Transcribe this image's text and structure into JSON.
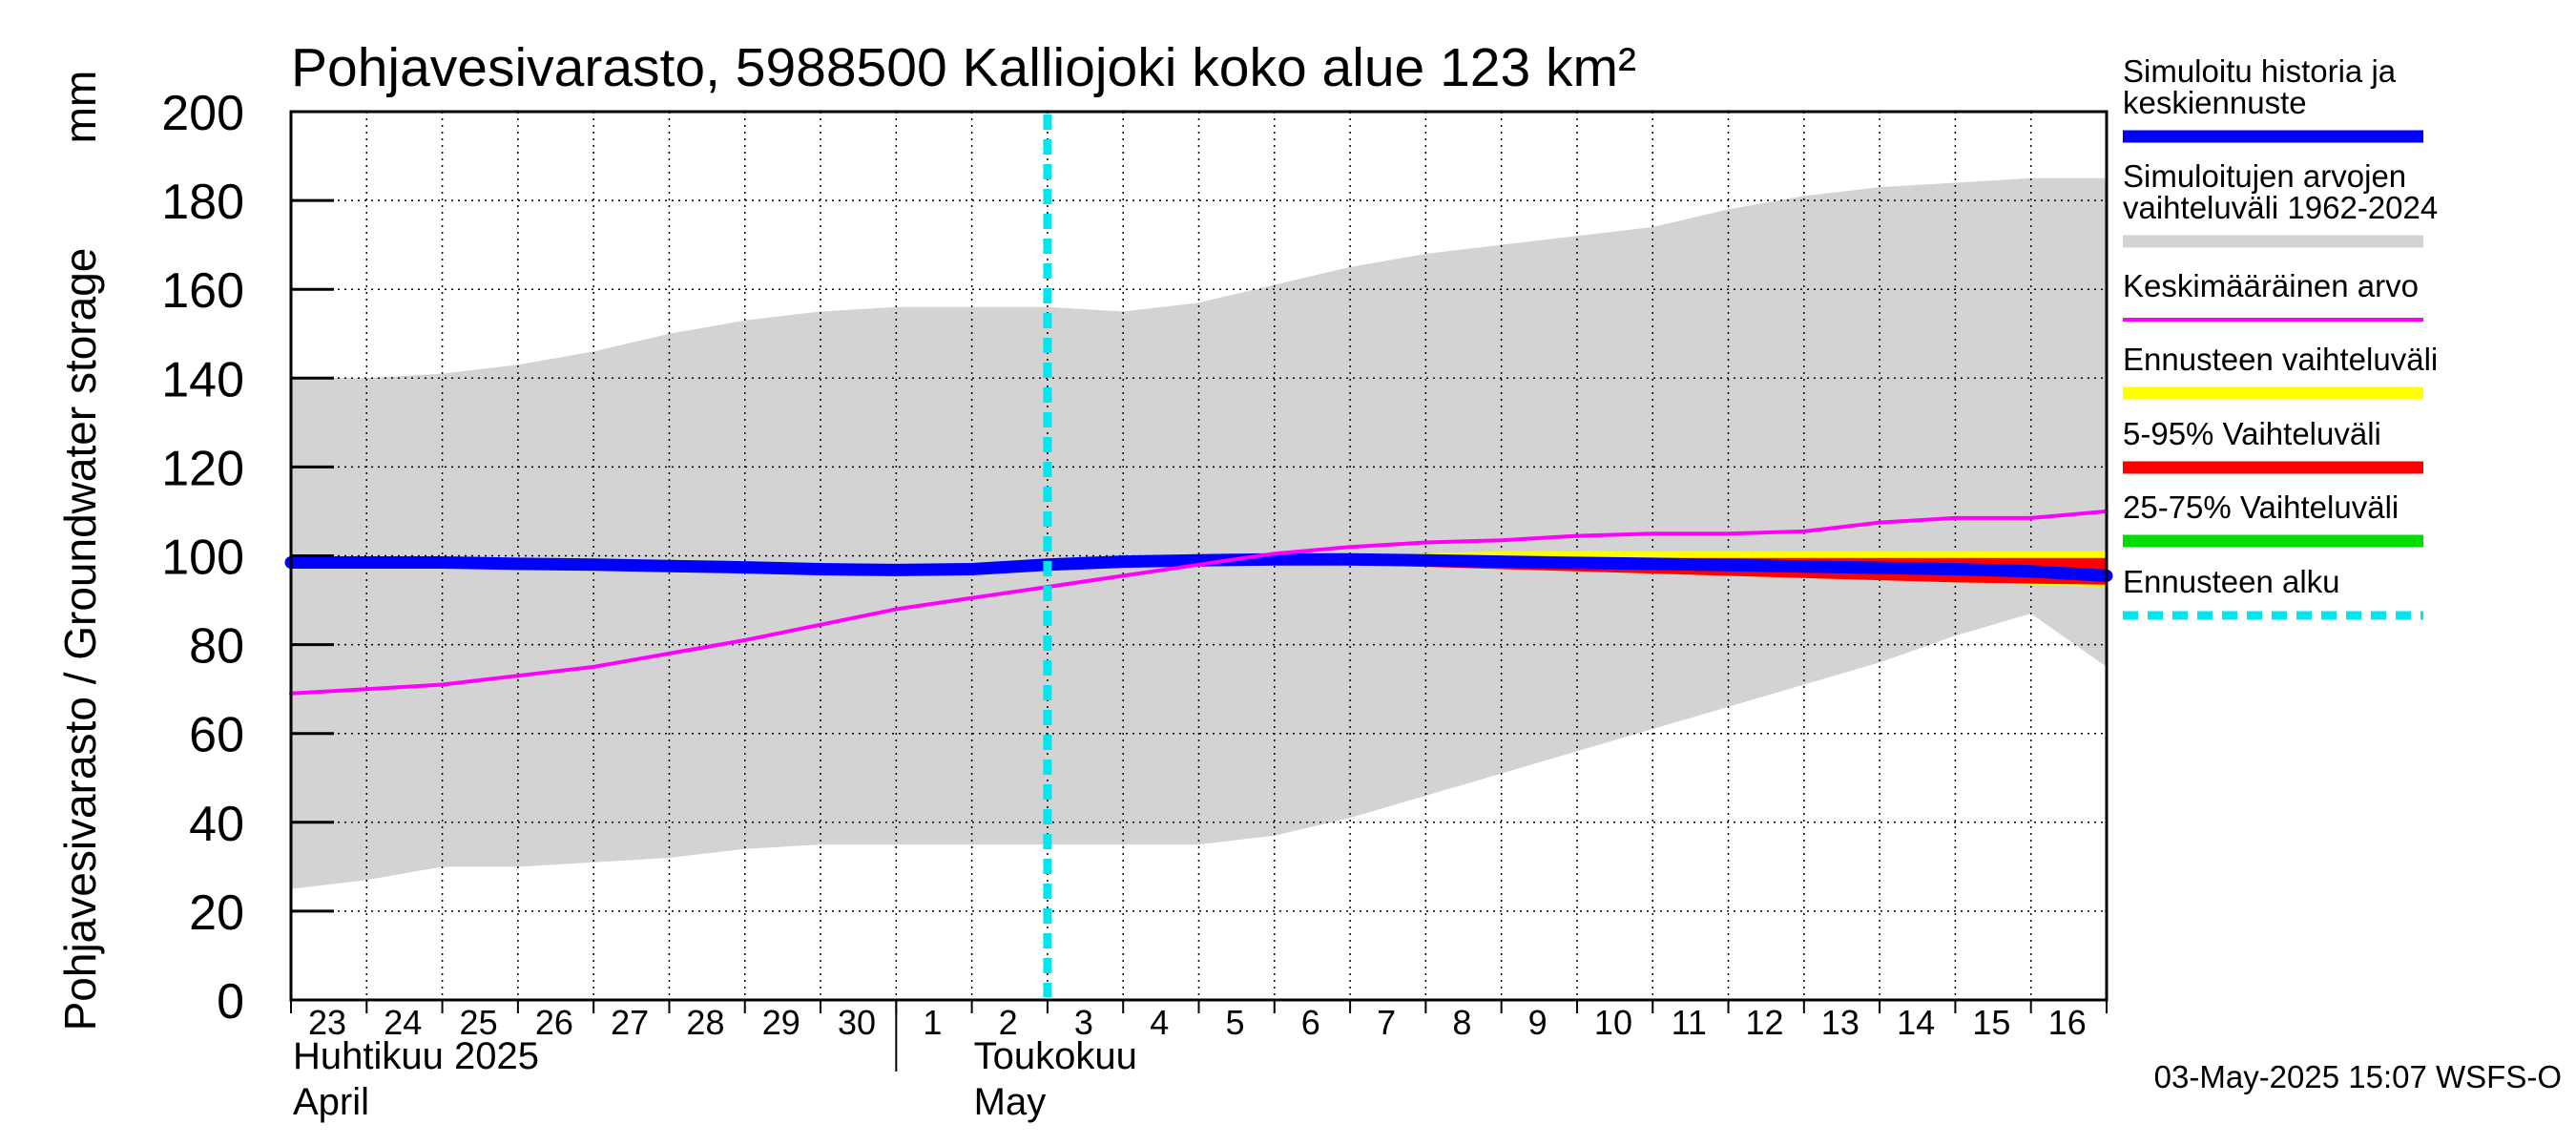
{
  "chart_data": {
    "type": "line",
    "title": "Pohjavesivarasto, 5988500 Kalliojoki koko alue 123 km²",
    "ylabel": "Pohjavesivarasto / Groundwater storage",
    "yunit": "mm",
    "ylim": [
      0,
      200
    ],
    "yticks": [
      0,
      20,
      40,
      60,
      80,
      100,
      120,
      140,
      160,
      180,
      200
    ],
    "xlim": [
      0,
      24
    ],
    "grid": true,
    "day_labels": [
      "23",
      "24",
      "25",
      "26",
      "27",
      "28",
      "29",
      "30",
      "1",
      "2",
      "3",
      "4",
      "5",
      "6",
      "7",
      "8",
      "9",
      "10",
      "11",
      "12",
      "13",
      "14",
      "15",
      "16"
    ],
    "month_labels": [
      {
        "line1": "Huhtikuu  2025",
        "line2": "April",
        "day_index": 0
      },
      {
        "line1": "Toukokuu",
        "line2": "May",
        "day_index": 9
      }
    ],
    "month_separator_day_index": 8,
    "forecast_start_x": 10,
    "sim_range": {
      "name": "Simuloitujen arvojen vaihteluväli 1962-2024",
      "color": "#d3d3d3",
      "x": [
        0,
        1,
        2,
        3,
        4,
        5,
        6,
        7,
        8,
        9,
        10,
        11,
        12,
        13,
        14,
        15,
        16,
        17,
        18,
        19,
        20,
        21,
        22,
        23,
        24
      ],
      "upper": [
        140,
        140,
        141,
        143,
        146,
        150,
        153,
        155,
        156,
        156,
        156,
        155,
        157,
        161,
        165,
        168,
        170,
        172,
        174,
        178,
        181,
        183,
        184,
        185,
        185
      ],
      "lower": [
        25,
        27,
        30,
        30,
        31,
        32,
        34,
        35,
        35,
        35,
        35,
        35,
        35,
        37,
        41,
        46,
        51,
        56,
        61,
        66,
        71,
        76,
        82,
        87,
        75
      ]
    },
    "forecast_band": {
      "name": "Ennusteen vaihteluväli",
      "color": "#ffff00",
      "x": [
        10,
        12,
        14,
        16,
        18,
        20,
        22,
        24
      ],
      "upper": [
        98,
        100,
        100,
        101,
        101,
        101,
        101,
        101
      ],
      "lower": [
        98,
        99,
        98,
        97,
        96,
        95,
        94,
        93
      ]
    },
    "band_5_95": {
      "name": "5-95% Vaihteluväli",
      "color": "#ff0000",
      "x": [
        10,
        12,
        14,
        16,
        18,
        20,
        22,
        24
      ],
      "upper": [
        98,
        99.5,
        99.5,
        99.5,
        99.5,
        99.5,
        99.5,
        99.5
      ],
      "lower": [
        98,
        99,
        98,
        97,
        96,
        95,
        94,
        93.5
      ]
    },
    "band_25_75": {
      "name": "25-75% Vaihteluväli",
      "color": "#00dd00",
      "x": [
        10,
        12,
        14,
        16,
        18,
        20,
        22,
        24
      ],
      "upper": [
        98,
        99.2,
        99,
        98.5,
        98,
        97.5,
        97,
        96.5
      ],
      "lower": [
        98,
        99,
        98.5,
        98,
        97.5,
        97,
        96,
        95
      ]
    },
    "series": [
      {
        "name": "Simuloitu historia ja keskiennuste",
        "color": "#0000ff",
        "x": [
          0,
          1,
          2,
          3,
          4,
          5,
          6,
          7,
          8,
          9,
          10,
          11,
          12,
          13,
          14,
          15,
          16,
          17,
          18,
          19,
          20,
          21,
          22,
          23,
          24
        ],
        "values": [
          98.5,
          98.5,
          98.5,
          98.2,
          98,
          97.7,
          97.4,
          97,
          96.8,
          97,
          98,
          98.7,
          99,
          99.2,
          99.2,
          99,
          98.7,
          98.4,
          98.2,
          97.9,
          97.6,
          97.3,
          97,
          96.5,
          95.5
        ]
      },
      {
        "name": "Keskimääräinen arvo",
        "color": "#ff00ff",
        "x": [
          0,
          1,
          2,
          3,
          4,
          5,
          6,
          7,
          8,
          9,
          10,
          11,
          12,
          13,
          14,
          15,
          16,
          17,
          18,
          19,
          20,
          21,
          22,
          23,
          24
        ],
        "values": [
          69,
          70,
          71,
          73,
          75,
          78,
          81,
          84.5,
          88,
          90.5,
          93,
          95.5,
          98,
          100.5,
          102,
          103,
          103.5,
          104.5,
          105,
          105,
          105.5,
          107.5,
          108.5,
          108.5,
          110
        ]
      }
    ]
  },
  "legend": {
    "items": [
      {
        "line1": "Simuloitu historia ja",
        "line2": "keskiennuste",
        "color": "#0000ff",
        "style": "solid"
      },
      {
        "line1": "Simuloitujen arvojen",
        "line2": "vaihteluväli 1962-2024",
        "color": "#d3d3d3",
        "style": "solid"
      },
      {
        "line1": "Keskimääräinen arvo",
        "line2": "",
        "color": "#ff00ff",
        "style": "thin"
      },
      {
        "line1": "Ennusteen vaihteluväli",
        "line2": "",
        "color": "#ffff00",
        "style": "solid"
      },
      {
        "line1": "5-95% Vaihteluväli",
        "line2": "",
        "color": "#ff0000",
        "style": "solid"
      },
      {
        "line1": "25-75% Vaihteluväli",
        "line2": "",
        "color": "#00dd00",
        "style": "solid"
      },
      {
        "line1": "Ennusteen alku",
        "line2": "",
        "color": "#00e5ee",
        "style": "dashed"
      }
    ]
  },
  "footer": {
    "timestamp": "03-May-2025 15:07 WSFS-O"
  }
}
